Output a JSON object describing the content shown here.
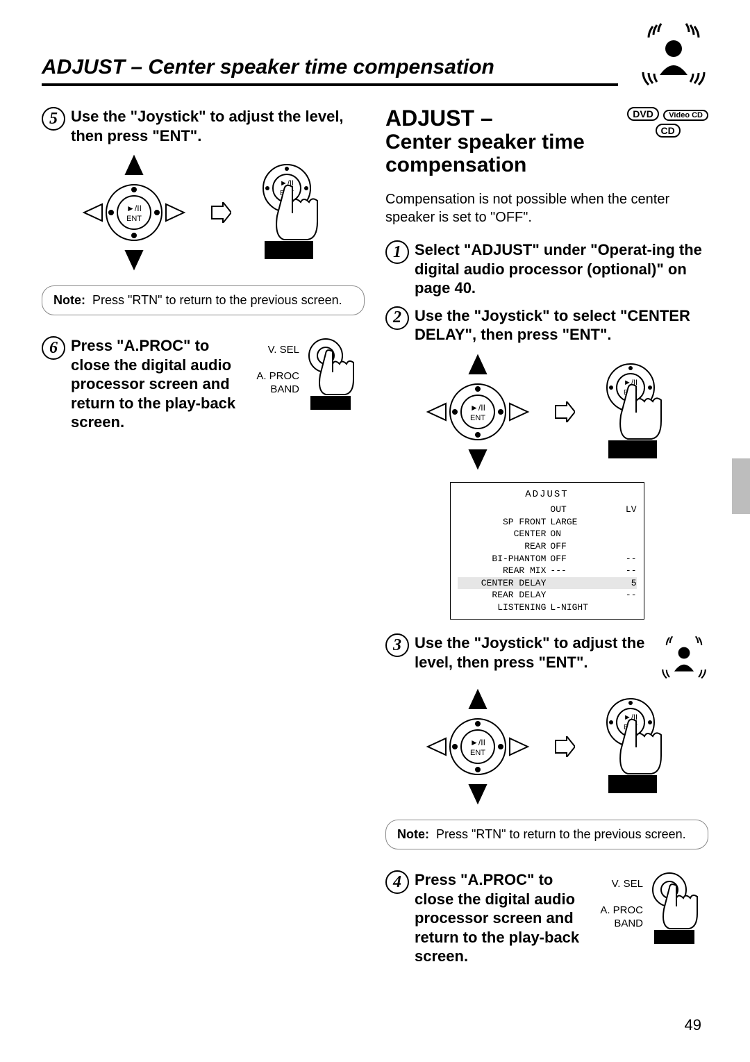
{
  "page_title": "ADJUST – Center speaker time compensation",
  "page_number": "49",
  "left": {
    "step5": {
      "num": "5",
      "text": "Use the \"Joystick\" to adjust the level, then press \"ENT\"."
    },
    "note": {
      "label": "Note:",
      "body": "Press \"RTN\" to return to the previous screen."
    },
    "step6": {
      "num": "6",
      "text": "Press \"A.PROC\" to close the digital audio processor screen and return to the play-back screen.",
      "knob_top": "V. SEL",
      "knob_mid": "A. PROC",
      "knob_bot": "BAND"
    }
  },
  "right": {
    "heading": "ADJUST –",
    "sub": "Center speaker time compensation",
    "badges": {
      "a": "DVD",
      "b": "Video CD",
      "c": "CD"
    },
    "desc": "Compensation is not possible when the center speaker is set to \"OFF\".",
    "step1": {
      "num": "1",
      "text": "Select \"ADJUST\" under \"Operat-ing the digital audio processor (optional)\" on page 40."
    },
    "step2": {
      "num": "2",
      "text": "Use the \"Joystick\" to select \"CENTER DELAY\", then press \"ENT\"."
    },
    "screen": {
      "title": "ADJUST",
      "header": {
        "c2": "OUT",
        "c3": "LV"
      },
      "rows": [
        {
          "c1": "SP FRONT",
          "c2": "LARGE",
          "c3": ""
        },
        {
          "c1": "CENTER",
          "c2": "ON",
          "c3": ""
        },
        {
          "c1": "REAR",
          "c2": "OFF",
          "c3": ""
        },
        {
          "c1": "BI-PHANTOM",
          "c2": "OFF",
          "c3": "--"
        },
        {
          "c1": "REAR MIX",
          "c2": "---",
          "c3": "--"
        },
        {
          "c1": "CENTER DELAY",
          "c2": "",
          "c3": "5",
          "highlight": true
        },
        {
          "c1": "REAR DELAY",
          "c2": "",
          "c3": "--"
        },
        {
          "c1": "LISTENING",
          "c2": "L-NIGHT",
          "c3": ""
        }
      ]
    },
    "step3": {
      "num": "3",
      "text": "Use the \"Joystick\" to adjust the level, then press \"ENT\"."
    },
    "note": {
      "label": "Note:",
      "body": "Press \"RTN\" to return to the previous screen."
    },
    "step4": {
      "num": "4",
      "text": "Press \"A.PROC\" to close the digital audio processor screen and return to the play-back screen.",
      "knob_top": "V. SEL",
      "knob_mid": "A. PROC",
      "knob_bot": "BAND"
    }
  },
  "labels": {
    "ent": "ENT",
    "play_pause": "►/II"
  }
}
